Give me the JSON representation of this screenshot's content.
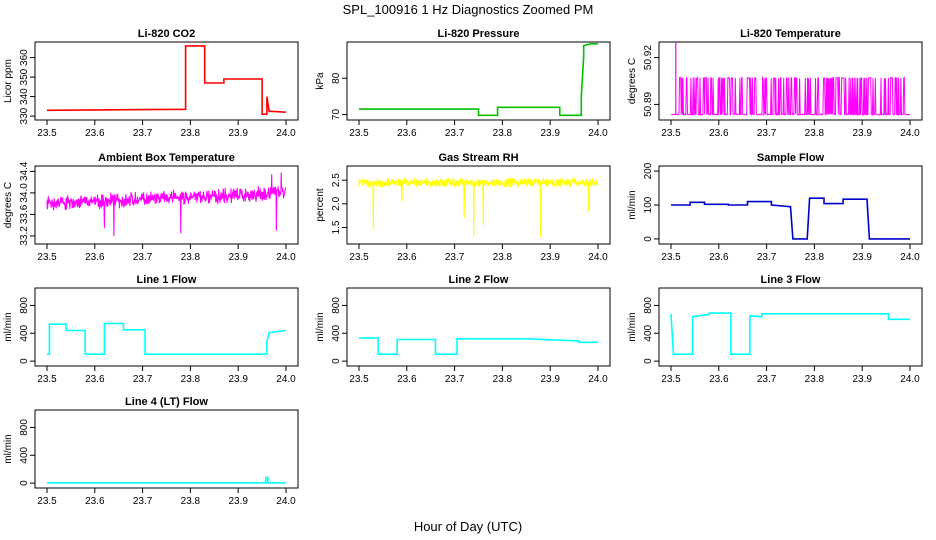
{
  "figure": {
    "title": "SPL_100916  1 Hz Diagnostics Zoomed PM",
    "xlabel": "Hour of Day (UTC)"
  },
  "chart_data": [
    {
      "type": "line",
      "title": "Li-820 CO2",
      "ylabel": "Licor ppm",
      "color": "#ff0000",
      "xlim": [
        23.5,
        24.0
      ],
      "xticks": [
        "23.5",
        "23.6",
        "23.7",
        "23.8",
        "23.9",
        "24.0"
      ],
      "ylim": [
        328,
        368
      ],
      "yticks": [
        "330",
        "340",
        "350",
        "360"
      ],
      "x": [
        23.5,
        23.79,
        23.79,
        23.83,
        23.83,
        23.87,
        23.87,
        23.95,
        23.95,
        23.96,
        23.96,
        23.965,
        23.965,
        24.0
      ],
      "y": [
        333,
        333.5,
        366,
        366,
        347,
        347,
        349,
        349,
        331,
        331,
        340,
        332,
        332.5,
        332
      ]
    },
    {
      "type": "line",
      "title": "Li-820 Pressure",
      "ylabel": "kPa",
      "color": "#00c000",
      "xlim": [
        23.5,
        24.0
      ],
      "xticks": [
        "23.5",
        "23.6",
        "23.7",
        "23.8",
        "23.9",
        "24.0"
      ],
      "ylim": [
        68.5,
        90
      ],
      "yticks": [
        "70",
        "80"
      ],
      "x": [
        23.5,
        23.75,
        23.75,
        23.79,
        23.79,
        23.92,
        23.92,
        23.965,
        23.965,
        23.97,
        23.97,
        23.985,
        24.0
      ],
      "y": [
        71.5,
        71.5,
        69.8,
        69.8,
        72,
        72,
        69.8,
        69.8,
        75,
        86,
        89,
        89.5,
        89.5
      ]
    },
    {
      "type": "spikes",
      "title": "Li-820 Temperature",
      "ylabel": "degrees C",
      "color": "#ff00ff",
      "xlim": [
        23.5,
        24.0
      ],
      "xticks": [
        "23.5",
        "23.6",
        "23.7",
        "23.8",
        "23.9",
        "24.0"
      ],
      "ylim": [
        50.88,
        50.93
      ],
      "yticks": [
        "50.89",
        "50.92"
      ],
      "baseline": 50.8835,
      "level": 50.907,
      "peak": 50.9295,
      "noise": 0.0005,
      "spike_prob": 0.35,
      "peak_x": 23.51
    },
    {
      "type": "noise",
      "title": "Ambient Box Temperature",
      "ylabel": "degrees C",
      "color": "#ff00ff",
      "xlim": [
        23.5,
        24.0
      ],
      "xticks": [
        "23.5",
        "23.6",
        "23.7",
        "23.8",
        "23.9",
        "24.0"
      ],
      "ylim": [
        33.05,
        34.5
      ],
      "yticks": [
        "33.2",
        "33.6",
        "34.0",
        "34.4"
      ],
      "mean_x": [
        23.5,
        24.0
      ],
      "mean_y": [
        33.8,
        34.0
      ],
      "noise": 0.1,
      "outliers": [
        [
          23.64,
          33.2
        ],
        [
          23.62,
          33.35
        ],
        [
          23.78,
          33.25
        ],
        [
          23.98,
          33.3
        ],
        [
          23.99,
          34.38
        ],
        [
          23.97,
          34.35
        ]
      ]
    },
    {
      "type": "noise",
      "title": "Gas Stream RH",
      "ylabel": "percent",
      "color": "#ffff00",
      "xlim": [
        23.5,
        24.0
      ],
      "xticks": [
        "23.5",
        "23.6",
        "23.7",
        "23.8",
        "23.9",
        "24.0"
      ],
      "ylim": [
        1.15,
        2.8
      ],
      "yticks": [
        "1.5",
        "2.0",
        "2.5"
      ],
      "mean_x": [
        23.5,
        24.0
      ],
      "mean_y": [
        2.45,
        2.45
      ],
      "noise": 0.07,
      "outliers": [
        [
          23.53,
          1.45
        ],
        [
          23.74,
          1.3
        ],
        [
          23.76,
          1.55
        ],
        [
          23.72,
          1.7
        ],
        [
          23.88,
          1.3
        ],
        [
          23.98,
          1.85
        ],
        [
          23.59,
          2.05
        ]
      ]
    },
    {
      "type": "line",
      "title": "Sample Flow",
      "ylabel": "ml/min",
      "color": "#0000cc",
      "xlim": [
        23.5,
        24.0
      ],
      "xticks": [
        "23.5",
        "23.6",
        "23.7",
        "23.8",
        "23.9",
        "24.0"
      ],
      "ylim": [
        -15,
        215
      ],
      "yticks": [
        "0",
        "100",
        "200"
      ],
      "x": [
        23.5,
        23.54,
        23.54,
        23.57,
        23.57,
        23.62,
        23.62,
        23.66,
        23.66,
        23.71,
        23.71,
        23.75,
        23.755,
        23.785,
        23.79,
        23.82,
        23.82,
        23.86,
        23.86,
        23.91,
        23.915,
        24.0
      ],
      "y": [
        100,
        100,
        108,
        108,
        102,
        102,
        100,
        100,
        110,
        110,
        100,
        95,
        0,
        0,
        120,
        120,
        104,
        104,
        117,
        117,
        0,
        0
      ]
    },
    {
      "type": "line",
      "title": "Line 1 Flow",
      "ylabel": "ml/min",
      "color": "#00ffff",
      "xlim": [
        23.5,
        24.0
      ],
      "xticks": [
        "23.5",
        "23.6",
        "23.7",
        "23.8",
        "23.9",
        "24.0"
      ],
      "ylim": [
        -70,
        1050
      ],
      "yticks": [
        "0",
        "400",
        "800"
      ],
      "x": [
        23.5,
        23.505,
        23.505,
        23.54,
        23.54,
        23.58,
        23.58,
        23.62,
        23.62,
        23.66,
        23.66,
        23.705,
        23.705,
        23.96,
        23.96,
        23.965,
        24.0
      ],
      "y": [
        100,
        100,
        530,
        530,
        440,
        440,
        100,
        100,
        540,
        540,
        450,
        450,
        100,
        100,
        290,
        410,
        440
      ]
    },
    {
      "type": "line",
      "title": "Line 2 Flow",
      "ylabel": "ml/min",
      "color": "#00ffff",
      "xlim": [
        23.5,
        24.0
      ],
      "xticks": [
        "23.5",
        "23.6",
        "23.7",
        "23.8",
        "23.9",
        "24.0"
      ],
      "ylim": [
        -70,
        1050
      ],
      "yticks": [
        "0",
        "400",
        "800"
      ],
      "x": [
        23.5,
        23.54,
        23.54,
        23.58,
        23.58,
        23.66,
        23.66,
        23.705,
        23.705,
        23.85,
        23.96,
        23.96,
        24.0
      ],
      "y": [
        330,
        330,
        100,
        100,
        310,
        310,
        100,
        100,
        320,
        320,
        290,
        270,
        270
      ]
    },
    {
      "type": "line",
      "title": "Line 3 Flow",
      "ylabel": "ml/min",
      "color": "#00ffff",
      "xlim": [
        23.5,
        24.0
      ],
      "xticks": [
        "23.5",
        "23.6",
        "23.7",
        "23.8",
        "23.9",
        "24.0"
      ],
      "ylim": [
        -70,
        1050
      ],
      "yticks": [
        "0",
        "400",
        "800"
      ],
      "x": [
        23.5,
        23.505,
        23.505,
        23.545,
        23.545,
        23.58,
        23.58,
        23.625,
        23.625,
        23.665,
        23.665,
        23.69,
        23.69,
        23.955,
        23.955,
        24.0
      ],
      "y": [
        680,
        100,
        100,
        100,
        640,
        670,
        690,
        690,
        100,
        100,
        650,
        640,
        680,
        680,
        600,
        600
      ]
    },
    {
      "type": "line",
      "title": "Line 4 (LT) Flow",
      "ylabel": "ml/min",
      "color": "#00ffff",
      "xlim": [
        23.5,
        24.0
      ],
      "xticks": [
        "23.5",
        "23.6",
        "23.7",
        "23.8",
        "23.9",
        "24.0"
      ],
      "ylim": [
        -70,
        1050
      ],
      "yticks": [
        "0",
        "400",
        "800"
      ],
      "x": [
        23.5,
        23.958,
        23.958,
        23.962,
        23.962,
        24.0
      ],
      "y": [
        5,
        5,
        80,
        80,
        5,
        5
      ]
    }
  ]
}
